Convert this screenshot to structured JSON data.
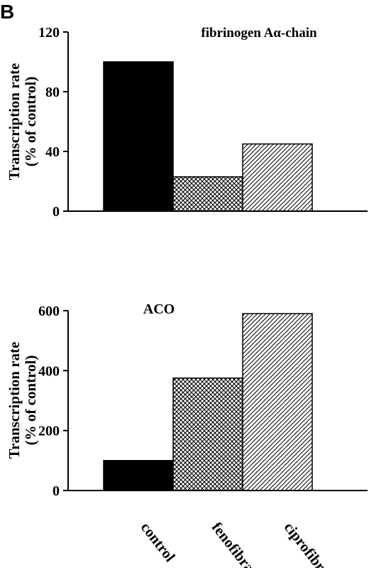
{
  "panel_label": "B",
  "chart_data": [
    {
      "type": "bar",
      "title": "fibrinogen  Aα-chain",
      "ylabel_line1": "Transcription rate",
      "ylabel_line2": "(% of control)",
      "ylim": [
        0,
        120
      ],
      "yticks": [
        "0",
        "40",
        "80",
        "120"
      ],
      "categories": [
        "control",
        "fenofibrate",
        "ciprofibrate"
      ],
      "values": [
        100,
        23,
        45
      ],
      "fills": [
        "solid-black",
        "crosshatch",
        "diagonal-hatch"
      ],
      "grid": false
    },
    {
      "type": "bar",
      "title": "ACO",
      "ylabel_line1": "Transcription rate",
      "ylabel_line2": "(% of control)",
      "ylim": [
        0,
        600
      ],
      "yticks": [
        "0",
        "200",
        "400",
        "600"
      ],
      "categories": [
        "control",
        "fenofibrate",
        "ciprofibrate"
      ],
      "values": [
        100,
        375,
        590
      ],
      "fills": [
        "solid-black",
        "crosshatch",
        "diagonal-hatch"
      ],
      "grid": false
    }
  ]
}
